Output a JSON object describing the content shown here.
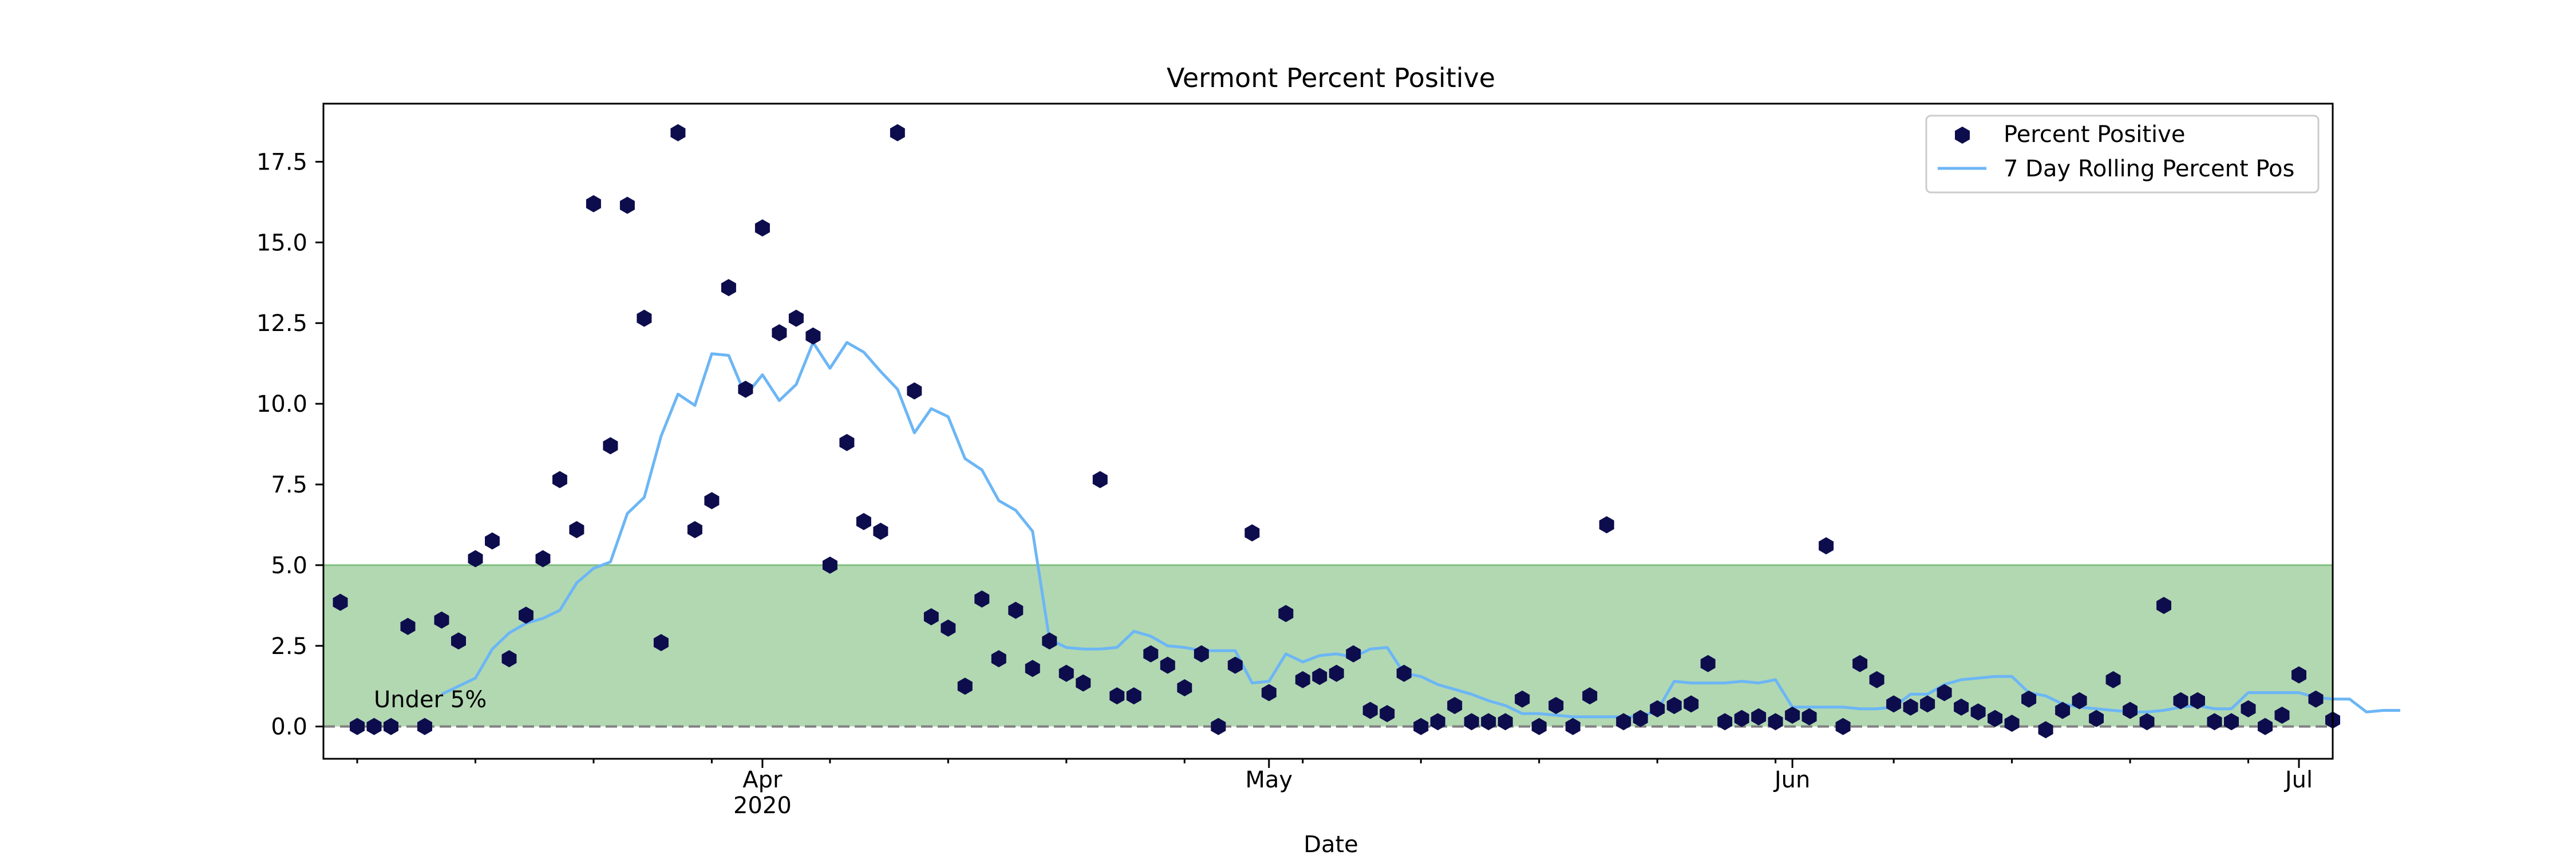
{
  "chart_data": {
    "type": "scatter",
    "title": "Vermont Percent Positive",
    "xlabel": "Date",
    "ylabel": "",
    "xlim": [
      "2020-03-06",
      "2020-07-03"
    ],
    "ylim": [
      -1.0,
      19.3
    ],
    "y_ticks": [
      0.0,
      2.5,
      5.0,
      7.5,
      10.0,
      12.5,
      15.0,
      17.5
    ],
    "y_tick_labels": [
      "0.0",
      "2.5",
      "5.0",
      "7.5",
      "10.0",
      "12.5",
      "15.0",
      "17.5"
    ],
    "x_major_ticks": [
      {
        "date": "2020-04-01",
        "label": "Apr",
        "sublabel": "2020"
      },
      {
        "date": "2020-05-01",
        "label": "May",
        "sublabel": ""
      },
      {
        "date": "2020-06-01",
        "label": "Jun",
        "sublabel": ""
      },
      {
        "date": "2020-07-01",
        "label": "Jul",
        "sublabel": ""
      }
    ],
    "x_minor_ticks": [
      "2020-03-08",
      "2020-03-15",
      "2020-03-22",
      "2020-03-29",
      "2020-04-05",
      "2020-04-12",
      "2020-04-19",
      "2020-04-26",
      "2020-05-03",
      "2020-05-10",
      "2020-05-17",
      "2020-05-24",
      "2020-05-31",
      "2020-06-07",
      "2020-06-14",
      "2020-06-21",
      "2020-06-28"
    ],
    "legend_position": "top-right",
    "grid": false,
    "threshold": {
      "value": 5.0,
      "label": "Under 5%",
      "fill_color": "#b2d8b2",
      "edge_color": "#7fbf7f"
    },
    "zero_line": {
      "value": 0.0,
      "color": "#808080",
      "style": "dashed"
    },
    "series": [
      {
        "name": "Percent Positive",
        "kind": "scatter",
        "marker": "hexagon",
        "color": "#0d0d4d",
        "start_date": "2020-03-07",
        "values": [
          3.85,
          0.0,
          0.0,
          0.0,
          3.1,
          0.0,
          3.3,
          2.65,
          5.2,
          5.75,
          2.1,
          3.45,
          5.2,
          7.65,
          6.1,
          16.2,
          8.7,
          16.15,
          12.65,
          2.6,
          18.4,
          6.1,
          7.0,
          13.6,
          10.45,
          15.45,
          12.2,
          12.65,
          12.1,
          5.0,
          8.8,
          6.35,
          6.05,
          18.4,
          10.4,
          3.4,
          3.05,
          1.25,
          3.95,
          2.1,
          3.6,
          1.8,
          2.65,
          1.65,
          1.35,
          7.65,
          0.95,
          0.95,
          2.25,
          1.9,
          1.2,
          2.25,
          0.0,
          1.9,
          6.0,
          1.05,
          3.5,
          1.45,
          1.55,
          1.65,
          2.25,
          0.5,
          0.4,
          1.65,
          0.0,
          0.15,
          0.65,
          0.15,
          0.15,
          0.15,
          0.85,
          0.0,
          0.65,
          0.0,
          0.95,
          6.25,
          0.15,
          0.25,
          0.55,
          0.65,
          0.7,
          1.95,
          0.15,
          0.25,
          0.3,
          0.15,
          0.35,
          0.3,
          5.6,
          0.0,
          1.95,
          1.45,
          0.7,
          0.6,
          0.7,
          1.05,
          0.6,
          0.45,
          0.25,
          0.1,
          0.85,
          -0.1,
          0.5,
          0.8,
          0.25,
          1.45,
          0.5,
          0.15,
          3.75,
          0.8,
          0.8,
          0.15,
          0.15,
          0.55,
          0.0,
          0.35,
          1.6,
          0.85,
          0.2
        ]
      },
      {
        "name": "7 Day Rolling Percent Pos",
        "kind": "line",
        "color": "#6cb6f5",
        "start_date": "2020-03-13",
        "values": [
          1.0,
          1.25,
          1.5,
          2.4,
          2.9,
          3.2,
          3.35,
          3.6,
          4.45,
          4.9,
          5.1,
          6.6,
          7.1,
          9.0,
          10.3,
          9.95,
          11.55,
          11.5,
          10.25,
          10.9,
          10.1,
          10.6,
          11.9,
          11.1,
          11.9,
          11.6,
          11.0,
          10.45,
          9.1,
          9.85,
          9.6,
          8.3,
          7.95,
          7.0,
          6.7,
          6.05,
          2.7,
          2.45,
          2.4,
          2.4,
          2.45,
          2.95,
          2.8,
          2.5,
          2.45,
          2.35,
          2.35,
          2.35,
          1.35,
          1.4,
          2.25,
          2.0,
          2.2,
          2.25,
          2.15,
          2.4,
          2.45,
          1.65,
          1.55,
          1.3,
          1.15,
          1.0,
          0.8,
          0.65,
          0.4,
          0.4,
          0.35,
          0.3,
          0.3,
          0.3,
          0.3,
          0.3,
          0.5,
          1.4,
          1.35,
          1.35,
          1.35,
          1.4,
          1.35,
          1.45,
          0.6,
          0.6,
          0.6,
          0.6,
          0.55,
          0.55,
          0.6,
          1.0,
          1.0,
          1.3,
          1.45,
          1.5,
          1.55,
          1.55,
          1.05,
          0.95,
          0.7,
          0.6,
          0.55,
          0.5,
          0.45,
          0.45,
          0.5,
          0.6,
          0.65,
          0.55,
          0.55,
          1.05,
          1.05,
          1.05,
          1.05,
          0.9,
          0.85,
          0.85,
          0.45,
          0.5,
          0.5
        ]
      }
    ]
  }
}
